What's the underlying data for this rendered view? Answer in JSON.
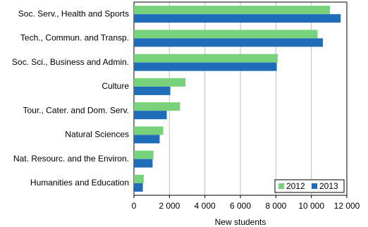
{
  "chart_data": {
    "type": "barh",
    "categories": [
      "Soc. Serv., Health and Sports",
      "Tech., Commun. and Transp.",
      "Soc. Sci., Business and Admin.",
      "Culture",
      "Tour., Cater. and Dom. Serv.",
      "Natural Sciences",
      "Nat. Resourc. and the Environ.",
      "Humanities and Education"
    ],
    "series": [
      {
        "name": "2012",
        "color": "#78d27c",
        "values": [
          11050,
          10350,
          8100,
          2900,
          2600,
          1650,
          1100,
          550
        ]
      },
      {
        "name": "2013",
        "color": "#1f6cb8",
        "values": [
          11650,
          10650,
          8050,
          2050,
          1850,
          1450,
          1050,
          500
        ]
      }
    ],
    "x_label": "New students",
    "xlim": [
      0,
      12000
    ],
    "xticks": [
      0,
      {
        "value": 2000,
        "label": "2 000"
      },
      {
        "value": 4000,
        "label": "4 000"
      },
      {
        "value": 6000,
        "label": "6 000"
      },
      {
        "value": 8000,
        "label": "8 000"
      },
      {
        "value": 10000,
        "label": "10 000"
      },
      {
        "value": 12000,
        "label": "12 000"
      }
    ],
    "grid": true,
    "legend": "bottom-right"
  }
}
